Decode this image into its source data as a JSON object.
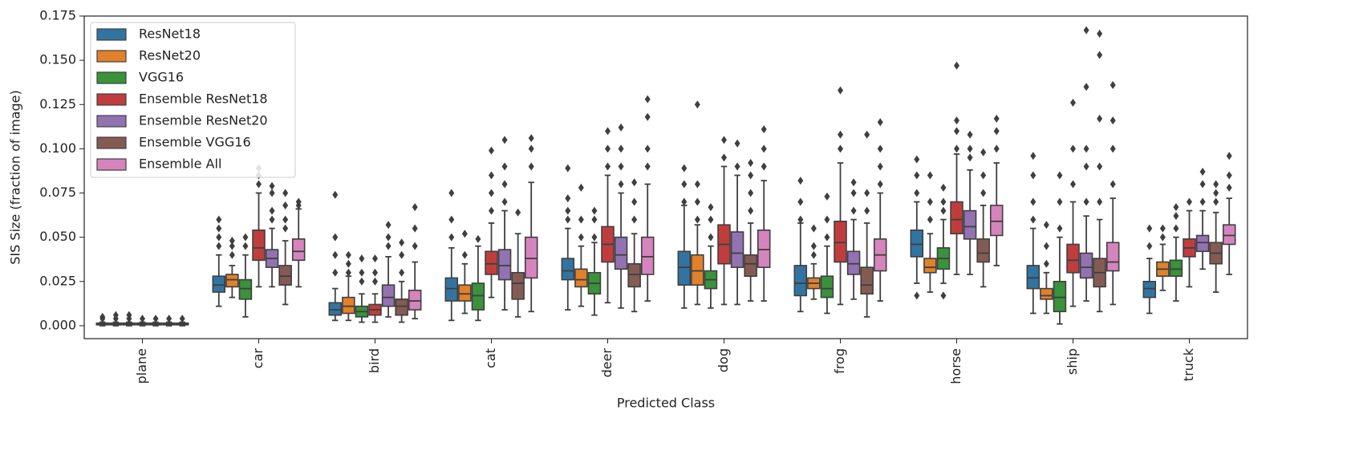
{
  "chart_data": {
    "type": "boxplot",
    "xlabel": "Predicted Class",
    "ylabel": "SIS Size (fraction of image)",
    "categories": [
      "plane",
      "car",
      "bird",
      "cat",
      "deer",
      "dog",
      "frog",
      "horse",
      "ship",
      "truck"
    ],
    "ylim": [
      -0.0073,
      0.175
    ],
    "yticks": [
      {
        "value": 0,
        "label": "0.000"
      },
      0.025,
      {
        "value": 0.05,
        "label": "0.050"
      },
      0.075,
      {
        "value": 0.1,
        "label": "0.100"
      },
      0.125,
      {
        "value": 0.15,
        "label": "0.150"
      },
      0.175
    ],
    "legend": "upper left",
    "edge_color": "#3f3f3f",
    "series": [
      {
        "name": "ResNet18",
        "color": "#3274a1",
        "values": [
          {
            "whislo": 0,
            "q1": 0.0005,
            "med": 0.001,
            "q3": 0.0015,
            "whishi": 0.002,
            "fliers": [
              0.004,
              0.005
            ]
          },
          {
            "whislo": 0.011,
            "q1": 0.019,
            "med": 0.023,
            "q3": 0.028,
            "whishi": 0.04,
            "fliers": [
              0.045,
              0.05,
              0.055,
              0.06
            ]
          },
          {
            "whislo": 0.003,
            "q1": 0.006,
            "med": 0.009,
            "q3": 0.013,
            "whishi": 0.021,
            "fliers": [
              0.03,
              0.04,
              0.05,
              0.074
            ]
          },
          {
            "whislo": 0.003,
            "q1": 0.014,
            "med": 0.021,
            "q3": 0.027,
            "whishi": 0.044,
            "fliers": [
              0.05,
              0.06,
              0.075
            ]
          },
          {
            "whislo": 0.009,
            "q1": 0.026,
            "med": 0.031,
            "q3": 0.038,
            "whishi": 0.055,
            "fliers": [
              0.06,
              0.065,
              0.072,
              0.089
            ]
          },
          {
            "whislo": 0.01,
            "q1": 0.023,
            "med": 0.033,
            "q3": 0.042,
            "whishi": 0.068,
            "fliers": [
              0.07,
              0.08,
              0.089
            ]
          },
          {
            "whislo": 0.008,
            "q1": 0.017,
            "med": 0.024,
            "q3": 0.034,
            "whishi": 0.058,
            "fliers": [
              0.06,
              0.07,
              0.082
            ]
          },
          {
            "whislo": 0.024,
            "q1": 0.039,
            "med": 0.046,
            "q3": 0.054,
            "whishi": 0.07,
            "fliers": [
              0.017,
              0.075,
              0.085,
              0.094
            ]
          },
          {
            "whislo": 0.007,
            "q1": 0.021,
            "med": 0.027,
            "q3": 0.034,
            "whishi": 0.055,
            "fliers": [
              0.06,
              0.07,
              0.085,
              0.096
            ]
          },
          {
            "whislo": 0.007,
            "q1": 0.016,
            "med": 0.021,
            "q3": 0.025,
            "whishi": 0.038,
            "fliers": [
              0.045,
              0.055
            ]
          }
        ]
      },
      {
        "name": "ResNet20",
        "color": "#e1812c",
        "values": [
          {
            "whislo": 0,
            "q1": 0.0005,
            "med": 0.001,
            "q3": 0.0015,
            "whishi": 0.002,
            "fliers": [
              0.004,
              0.006
            ]
          },
          {
            "whislo": 0.016,
            "q1": 0.022,
            "med": 0.026,
            "q3": 0.029,
            "whishi": 0.034,
            "fliers": [
              0.04,
              0.045,
              0.048
            ]
          },
          {
            "whislo": 0.003,
            "q1": 0.007,
            "med": 0.011,
            "q3": 0.016,
            "whishi": 0.028,
            "fliers": [
              0.03,
              0.035,
              0.04
            ]
          },
          {
            "whislo": 0.007,
            "q1": 0.014,
            "med": 0.018,
            "q3": 0.023,
            "whishi": 0.035,
            "fliers": [
              0.04,
              0.052
            ]
          },
          {
            "whislo": 0.011,
            "q1": 0.022,
            "med": 0.026,
            "q3": 0.032,
            "whishi": 0.045,
            "fliers": [
              0.05,
              0.06,
              0.078
            ]
          },
          {
            "whislo": 0.012,
            "q1": 0.023,
            "med": 0.031,
            "q3": 0.04,
            "whishi": 0.057,
            "fliers": [
              0.06,
              0.07,
              0.08,
              0.125
            ]
          },
          {
            "whislo": 0.015,
            "q1": 0.021,
            "med": 0.024,
            "q3": 0.027,
            "whishi": 0.035,
            "fliers": [
              0.04,
              0.045,
              0.055
            ]
          },
          {
            "whislo": 0.019,
            "q1": 0.03,
            "med": 0.033,
            "q3": 0.038,
            "whishi": 0.052,
            "fliers": [
              0.06,
              0.07,
              0.085
            ]
          },
          {
            "whislo": 0.007,
            "q1": 0.015,
            "med": 0.017,
            "q3": 0.021,
            "whishi": 0.03,
            "fliers": [
              0.035,
              0.045,
              0.057
            ]
          },
          {
            "whislo": 0.02,
            "q1": 0.028,
            "med": 0.032,
            "q3": 0.036,
            "whishi": 0.046,
            "fliers": [
              0.05,
              0.055
            ]
          }
        ]
      },
      {
        "name": "VGG16",
        "color": "#3a923a",
        "values": [
          {
            "whislo": 0,
            "q1": 0.0005,
            "med": 0.001,
            "q3": 0.0015,
            "whishi": 0.002,
            "fliers": [
              0.004,
              0.006
            ]
          },
          {
            "whislo": 0.005,
            "q1": 0.015,
            "med": 0.021,
            "q3": 0.026,
            "whishi": 0.04,
            "fliers": [
              0.045,
              0.05
            ]
          },
          {
            "whislo": 0.002,
            "q1": 0.005,
            "med": 0.008,
            "q3": 0.011,
            "whishi": 0.018,
            "fliers": [
              0.025,
              0.03,
              0.038
            ]
          },
          {
            "whislo": 0.003,
            "q1": 0.009,
            "med": 0.017,
            "q3": 0.024,
            "whishi": 0.045,
            "fliers": [
              0.049
            ]
          },
          {
            "whislo": 0.006,
            "q1": 0.018,
            "med": 0.024,
            "q3": 0.03,
            "whishi": 0.047,
            "fliers": [
              0.05,
              0.06,
              0.065
            ]
          },
          {
            "whislo": 0.01,
            "q1": 0.021,
            "med": 0.026,
            "q3": 0.031,
            "whishi": 0.045,
            "fliers": [
              0.05,
              0.06,
              0.067
            ]
          },
          {
            "whislo": 0.007,
            "q1": 0.016,
            "med": 0.021,
            "q3": 0.028,
            "whishi": 0.045,
            "fliers": [
              0.05,
              0.06,
              0.073
            ]
          },
          {
            "whislo": 0.024,
            "q1": 0.032,
            "med": 0.038,
            "q3": 0.044,
            "whishi": 0.06,
            "fliers": [
              0.017,
              0.065,
              0.07,
              0.078
            ]
          },
          {
            "whislo": 0.001,
            "q1": 0.008,
            "med": 0.016,
            "q3": 0.025,
            "whishi": 0.05,
            "fliers": [
              0.055,
              0.07,
              0.085
            ]
          },
          {
            "whislo": 0.014,
            "q1": 0.028,
            "med": 0.032,
            "q3": 0.037,
            "whishi": 0.05,
            "fliers": [
              0.055,
              0.062,
              0.067
            ]
          }
        ]
      },
      {
        "name": "Ensemble ResNet18",
        "color": "#c03d3e",
        "values": [
          {
            "whislo": 0,
            "q1": 0.0005,
            "med": 0.001,
            "q3": 0.0015,
            "whishi": 0.002,
            "fliers": [
              0.004
            ]
          },
          {
            "whislo": 0.022,
            "q1": 0.037,
            "med": 0.044,
            "q3": 0.054,
            "whishi": 0.075,
            "fliers": [
              0.08,
              0.085,
              0.089
            ]
          },
          {
            "whislo": 0.002,
            "q1": 0.006,
            "med": 0.009,
            "q3": 0.012,
            "whishi": 0.018,
            "fliers": [
              0.025,
              0.03,
              0.038
            ]
          },
          {
            "whislo": 0.016,
            "q1": 0.029,
            "med": 0.035,
            "q3": 0.042,
            "whishi": 0.058,
            "fliers": [
              0.065,
              0.075,
              0.085,
              0.099
            ]
          },
          {
            "whislo": 0.013,
            "q1": 0.036,
            "med": 0.046,
            "q3": 0.056,
            "whishi": 0.085,
            "fliers": [
              0.09,
              0.1,
              0.11
            ]
          },
          {
            "whislo": 0.012,
            "q1": 0.035,
            "med": 0.046,
            "q3": 0.057,
            "whishi": 0.09,
            "fliers": [
              0.095,
              0.105
            ]
          },
          {
            "whislo": 0.012,
            "q1": 0.036,
            "med": 0.047,
            "q3": 0.059,
            "whishi": 0.092,
            "fliers": [
              0.1,
              0.108,
              0.133
            ]
          },
          {
            "whislo": 0.029,
            "q1": 0.052,
            "med": 0.06,
            "q3": 0.07,
            "whishi": 0.097,
            "fliers": [
              0.1,
              0.11,
              0.116,
              0.147
            ]
          },
          {
            "whislo": 0.011,
            "q1": 0.03,
            "med": 0.037,
            "q3": 0.046,
            "whishi": 0.07,
            "fliers": [
              0.08,
              0.1,
              0.126
            ]
          },
          {
            "whislo": 0.022,
            "q1": 0.039,
            "med": 0.044,
            "q3": 0.049,
            "whishi": 0.065,
            "fliers": [
              0.07
            ]
          }
        ]
      },
      {
        "name": "Ensemble ResNet20",
        "color": "#9372b2",
        "values": [
          {
            "whislo": 0,
            "q1": 0.0005,
            "med": 0.001,
            "q3": 0.0015,
            "whishi": 0.002,
            "fliers": [
              0.004
            ]
          },
          {
            "whislo": 0.022,
            "q1": 0.033,
            "med": 0.038,
            "q3": 0.043,
            "whishi": 0.055,
            "fliers": [
              0.06,
              0.065,
              0.075,
              0.079
            ]
          },
          {
            "whislo": 0.005,
            "q1": 0.011,
            "med": 0.016,
            "q3": 0.023,
            "whishi": 0.039,
            "fliers": [
              0.045,
              0.05,
              0.057
            ]
          },
          {
            "whislo": 0.009,
            "q1": 0.026,
            "med": 0.034,
            "q3": 0.043,
            "whishi": 0.065,
            "fliers": [
              0.07,
              0.08,
              0.09,
              0.105
            ]
          },
          {
            "whislo": 0.01,
            "q1": 0.032,
            "med": 0.04,
            "q3": 0.05,
            "whishi": 0.075,
            "fliers": [
              0.08,
              0.09,
              0.1,
              0.112
            ]
          },
          {
            "whislo": 0.012,
            "q1": 0.033,
            "med": 0.041,
            "q3": 0.053,
            "whishi": 0.085,
            "fliers": [
              0.09,
              0.103
            ]
          },
          {
            "whislo": 0.015,
            "q1": 0.029,
            "med": 0.035,
            "q3": 0.042,
            "whishi": 0.06,
            "fliers": [
              0.065,
              0.075,
              0.081
            ]
          },
          {
            "whislo": 0.029,
            "q1": 0.049,
            "med": 0.056,
            "q3": 0.065,
            "whishi": 0.088,
            "fliers": [
              0.095,
              0.1,
              0.108
            ]
          },
          {
            "whislo": 0.014,
            "q1": 0.027,
            "med": 0.033,
            "q3": 0.041,
            "whishi": 0.062,
            "fliers": [
              0.07,
              0.09,
              0.1,
              0.135,
              0.167
            ]
          },
          {
            "whislo": 0.032,
            "q1": 0.042,
            "med": 0.047,
            "q3": 0.051,
            "whishi": 0.065,
            "fliers": [
              0.07,
              0.08,
              0.087
            ]
          }
        ]
      },
      {
        "name": "Ensemble VGG16",
        "color": "#845b53",
        "values": [
          {
            "whislo": 0,
            "q1": 0.0005,
            "med": 0.001,
            "q3": 0.0015,
            "whishi": 0.002,
            "fliers": [
              0.004
            ]
          },
          {
            "whislo": 0.012,
            "q1": 0.023,
            "med": 0.028,
            "q3": 0.034,
            "whishi": 0.048,
            "fliers": [
              0.055,
              0.06,
              0.068,
              0.075
            ]
          },
          {
            "whislo": 0.002,
            "q1": 0.006,
            "med": 0.011,
            "q3": 0.015,
            "whishi": 0.025,
            "fliers": [
              0.03,
              0.04,
              0.047
            ]
          },
          {
            "whislo": 0.005,
            "q1": 0.015,
            "med": 0.024,
            "q3": 0.03,
            "whishi": 0.052,
            "fliers": [
              0.064
            ]
          },
          {
            "whislo": 0.008,
            "q1": 0.022,
            "med": 0.029,
            "q3": 0.035,
            "whishi": 0.052,
            "fliers": [
              0.06,
              0.07,
              0.081
            ]
          },
          {
            "whislo": 0.014,
            "q1": 0.028,
            "med": 0.035,
            "q3": 0.04,
            "whishi": 0.058,
            "fliers": [
              0.065,
              0.075,
              0.085,
              0.092
            ]
          },
          {
            "whislo": 0.005,
            "q1": 0.018,
            "med": 0.023,
            "q3": 0.033,
            "whishi": 0.058,
            "fliers": [
              0.065,
              0.075,
              0.108
            ]
          },
          {
            "whislo": 0.022,
            "q1": 0.036,
            "med": 0.041,
            "q3": 0.049,
            "whishi": 0.068,
            "fliers": [
              0.075,
              0.085,
              0.098
            ]
          },
          {
            "whislo": 0.008,
            "q1": 0.022,
            "med": 0.03,
            "q3": 0.038,
            "whishi": 0.06,
            "fliers": [
              0.07,
              0.09,
              0.117,
              0.153,
              0.165
            ]
          },
          {
            "whislo": 0.019,
            "q1": 0.035,
            "med": 0.041,
            "q3": 0.047,
            "whishi": 0.064,
            "fliers": [
              0.07,
              0.075,
              0.08
            ]
          }
        ]
      },
      {
        "name": "Ensemble All",
        "color": "#d684bd",
        "values": [
          {
            "whislo": 0,
            "q1": 0.0005,
            "med": 0.001,
            "q3": 0.0015,
            "whishi": 0.002,
            "fliers": [
              0.004
            ]
          },
          {
            "whislo": 0.022,
            "q1": 0.037,
            "med": 0.042,
            "q3": 0.049,
            "whishi": 0.066,
            "fliers": [
              0.068,
              0.07
            ]
          },
          {
            "whislo": 0.004,
            "q1": 0.009,
            "med": 0.014,
            "q3": 0.02,
            "whishi": 0.036,
            "fliers": [
              0.045,
              0.055,
              0.067
            ]
          },
          {
            "whislo": 0.008,
            "q1": 0.027,
            "med": 0.038,
            "q3": 0.05,
            "whishi": 0.081,
            "fliers": [
              0.09,
              0.1,
              0.106
            ]
          },
          {
            "whislo": 0.014,
            "q1": 0.029,
            "med": 0.039,
            "q3": 0.05,
            "whishi": 0.08,
            "fliers": [
              0.09,
              0.1,
              0.118,
              0.128
            ]
          },
          {
            "whislo": 0.014,
            "q1": 0.033,
            "med": 0.043,
            "q3": 0.054,
            "whishi": 0.082,
            "fliers": [
              0.09,
              0.1,
              0.111
            ]
          },
          {
            "whislo": 0.014,
            "q1": 0.031,
            "med": 0.04,
            "q3": 0.049,
            "whishi": 0.075,
            "fliers": [
              0.08,
              0.09,
              0.1,
              0.115
            ]
          },
          {
            "whislo": 0.034,
            "q1": 0.051,
            "med": 0.059,
            "q3": 0.068,
            "whishi": 0.092,
            "fliers": [
              0.1,
              0.11,
              0.117
            ]
          },
          {
            "whislo": 0.012,
            "q1": 0.031,
            "med": 0.036,
            "q3": 0.047,
            "whishi": 0.072,
            "fliers": [
              0.08,
              0.1,
              0.116,
              0.136
            ]
          },
          {
            "whislo": 0.029,
            "q1": 0.046,
            "med": 0.051,
            "q3": 0.057,
            "whishi": 0.072,
            "fliers": [
              0.078,
              0.085,
              0.096
            ]
          }
        ]
      }
    ]
  }
}
